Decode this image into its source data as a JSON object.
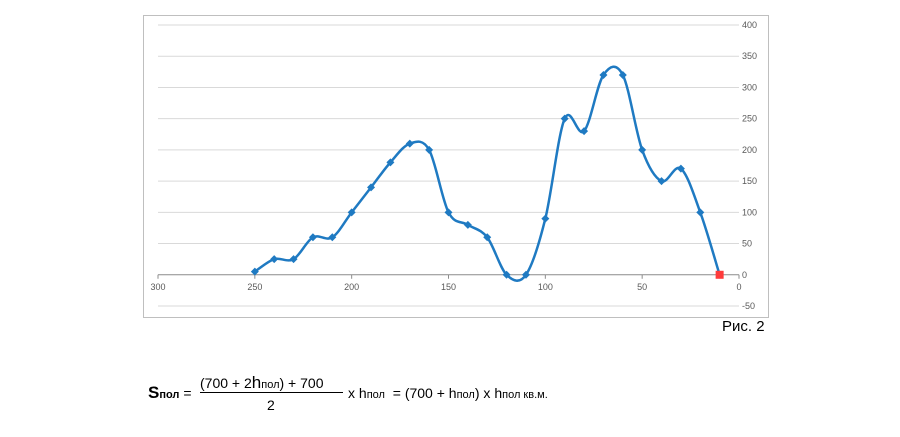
{
  "chart_data": {
    "type": "line",
    "title": "",
    "xlabel": "",
    "ylabel": "",
    "x_axis_reversed": true,
    "y_axis_position": "right",
    "xlim": [
      0,
      300
    ],
    "ylim": [
      -50,
      400
    ],
    "x_ticks": [
      "300",
      "250",
      "200",
      "150",
      "100",
      "50",
      "0"
    ],
    "y_ticks": [
      "400",
      "350",
      "300",
      "250",
      "200",
      "150",
      "100",
      "50",
      "0",
      "-50"
    ],
    "grid": "horizontal",
    "smooth": true,
    "series": [
      {
        "color": "#1f7ac2",
        "marker": "diamond",
        "x": [
          250,
          240,
          230,
          220,
          210,
          200,
          190,
          180,
          170,
          160,
          150,
          140,
          130,
          120,
          110,
          100,
          90,
          80,
          70,
          60,
          50,
          40,
          30,
          20,
          10
        ],
        "y": [
          5,
          25,
          25,
          60,
          60,
          100,
          140,
          180,
          210,
          200,
          100,
          80,
          60,
          0,
          0,
          90,
          250,
          230,
          320,
          320,
          200,
          150,
          170,
          100,
          0
        ]
      }
    ],
    "highlight_point": {
      "x": 10,
      "y": 0,
      "color": "#ff3b3b",
      "marker": "square"
    }
  },
  "caption": "Рис. 2",
  "formula": {
    "lhs_symbol": "S",
    "lhs_sub": "пол",
    "eq1": "=",
    "num_open": "(700 + 2",
    "num_h": "h",
    "num_h_sub": "пол",
    "num_close": ") + 700",
    "den": "2",
    "times1": "x",
    "h1": "h",
    "h1_sub": "пол",
    "eq2": "=",
    "rhs_open": "(700 +",
    "rhs_h": "h",
    "rhs_h_sub": "пол",
    "rhs_close": ")",
    "times2": "x",
    "h2": "h",
    "h2_sub": "пол кв.м."
  }
}
